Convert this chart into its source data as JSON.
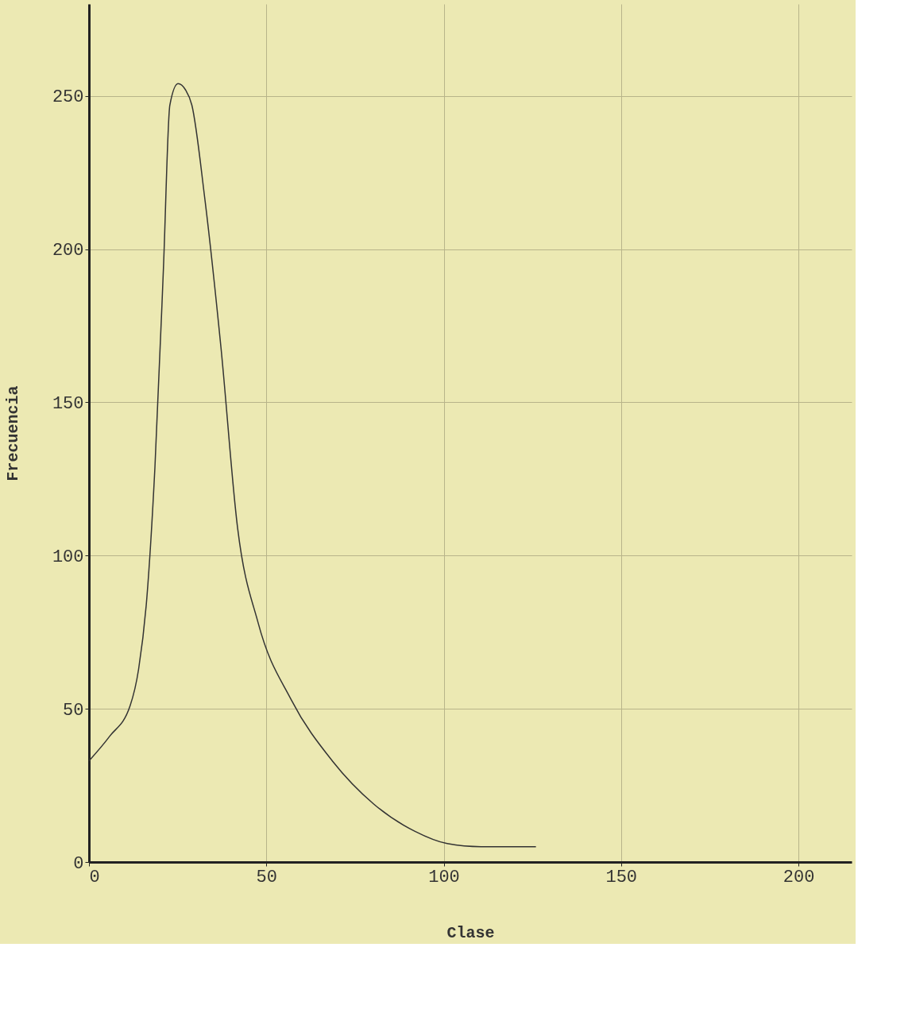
{
  "chart_data": {
    "type": "line",
    "xlabel": "Clase",
    "ylabel": "Frecuencia",
    "x": [
      0,
      5.8,
      11.6,
      14,
      16.3,
      18.6,
      21,
      22.8,
      25.1,
      27.2,
      29,
      32.6,
      37.2,
      41.9,
      47.7,
      57,
      68.6,
      80.2,
      91.9,
      101,
      110.5,
      126
    ],
    "series": [
      {
        "color": "#333333",
        "values": [
          33,
          41,
          51,
          63,
          86,
          129,
          194,
          247,
          254,
          252,
          247,
          217,
          168,
          109,
          78,
          53,
          33,
          19,
          10,
          6,
          5,
          5
        ]
      }
    ],
    "xlim": [
      0,
      215
    ],
    "ylim": [
      0,
      280
    ],
    "xticks": [
      0,
      50,
      100,
      150,
      200
    ],
    "yticks": [
      0,
      50,
      100,
      150,
      200,
      250
    ],
    "grid": true
  }
}
